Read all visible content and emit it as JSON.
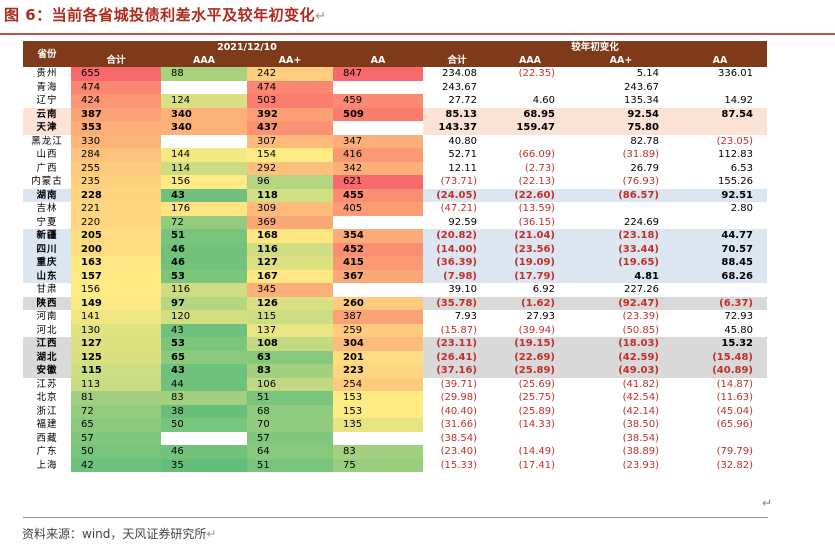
{
  "title": "图 6：当前各省城投债利差水平及较年初变化",
  "paragraph_mark": "↵",
  "header": {
    "province": "省份",
    "date_group": "2021/12/10",
    "change_group": "较年初变化",
    "cols": [
      "合计",
      "AAA",
      "AA+",
      "AA",
      "合计",
      "AAA",
      "AA+",
      "AA"
    ]
  },
  "rows": [
    {
      "p": "贵州",
      "v": [
        "655",
        "88",
        "242",
        "847"
      ],
      "c": [
        "234.08",
        "(22.35)",
        "5.14",
        "336.01"
      ],
      "hl": ""
    },
    {
      "p": "青海",
      "v": [
        "474",
        "",
        "474",
        ""
      ],
      "c": [
        "243.67",
        "",
        "243.67",
        ""
      ],
      "hl": ""
    },
    {
      "p": "辽宁",
      "v": [
        "424",
        "124",
        "503",
        "459"
      ],
      "c": [
        "27.72",
        "4.60",
        "135.34",
        "14.92"
      ],
      "hl": ""
    },
    {
      "p": "云南",
      "v": [
        "387",
        "340",
        "392",
        "509"
      ],
      "c": [
        "85.13",
        "68.95",
        "92.54",
        "87.54"
      ],
      "hl": "orange"
    },
    {
      "p": "天津",
      "v": [
        "353",
        "340",
        "437",
        ""
      ],
      "c": [
        "143.37",
        "159.47",
        "75.80",
        ""
      ],
      "hl": "orange"
    },
    {
      "p": "黑龙江",
      "v": [
        "330",
        "",
        "307",
        "347"
      ],
      "c": [
        "40.80",
        "",
        "82.78",
        "(23.05)"
      ],
      "hl": ""
    },
    {
      "p": "山西",
      "v": [
        "284",
        "144",
        "154",
        "416"
      ],
      "c": [
        "52.71",
        "(66.09)",
        "(31.89)",
        "112.83"
      ],
      "hl": ""
    },
    {
      "p": "广西",
      "v": [
        "255",
        "114",
        "292",
        "342"
      ],
      "c": [
        "12.11",
        "(2.73)",
        "26.79",
        "6.53"
      ],
      "hl": ""
    },
    {
      "p": "内蒙古",
      "v": [
        "235",
        "156",
        "96",
        "621"
      ],
      "c": [
        "(73.71)",
        "(22.13)",
        "(76.93)",
        "155.26"
      ],
      "hl": ""
    },
    {
      "p": "湖南",
      "v": [
        "228",
        "43",
        "118",
        "455"
      ],
      "c": [
        "(24.05)",
        "(22.60)",
        "(86.57)",
        "92.51"
      ],
      "hl": "blue"
    },
    {
      "p": "吉林",
      "v": [
        "221",
        "176",
        "309",
        "405"
      ],
      "c": [
        "(47.21)",
        "(13.59)",
        "",
        "2.80"
      ],
      "hl": ""
    },
    {
      "p": "宁夏",
      "v": [
        "220",
        "72",
        "369",
        ""
      ],
      "c": [
        "92.59",
        "(36.15)",
        "224.69",
        ""
      ],
      "hl": ""
    },
    {
      "p": "新疆",
      "v": [
        "205",
        "51",
        "168",
        "354"
      ],
      "c": [
        "(20.82)",
        "(21.04)",
        "(23.18)",
        "44.77"
      ],
      "hl": "blue"
    },
    {
      "p": "四川",
      "v": [
        "200",
        "46",
        "116",
        "452"
      ],
      "c": [
        "(14.00)",
        "(23.56)",
        "(33.44)",
        "70.57"
      ],
      "hl": "blue"
    },
    {
      "p": "重庆",
      "v": [
        "163",
        "46",
        "127",
        "415"
      ],
      "c": [
        "(36.39)",
        "(19.09)",
        "(19.65)",
        "88.45"
      ],
      "hl": "blue"
    },
    {
      "p": "山东",
      "v": [
        "157",
        "53",
        "167",
        "367"
      ],
      "c": [
        "(7.98)",
        "(17.79)",
        "4.81",
        "68.26"
      ],
      "hl": "blue"
    },
    {
      "p": "甘肃",
      "v": [
        "156",
        "116",
        "345",
        ""
      ],
      "c": [
        "39.10",
        "6.92",
        "227.26",
        ""
      ],
      "hl": ""
    },
    {
      "p": "陕西",
      "v": [
        "149",
        "97",
        "126",
        "260"
      ],
      "c": [
        "(35.78)",
        "(1.62)",
        "(92.47)",
        "(6.37)"
      ],
      "hl": "gray"
    },
    {
      "p": "河南",
      "v": [
        "141",
        "120",
        "115",
        "387"
      ],
      "c": [
        "7.93",
        "27.93",
        "(23.39)",
        "72.93"
      ],
      "hl": ""
    },
    {
      "p": "河北",
      "v": [
        "130",
        "43",
        "137",
        "259"
      ],
      "c": [
        "(15.87)",
        "(39.94)",
        "(50.85)",
        "45.80"
      ],
      "hl": ""
    },
    {
      "p": "江西",
      "v": [
        "127",
        "53",
        "108",
        "304"
      ],
      "c": [
        "(23.11)",
        "(19.15)",
        "(18.03)",
        "15.32"
      ],
      "hl": "gray"
    },
    {
      "p": "湖北",
      "v": [
        "125",
        "65",
        "63",
        "201"
      ],
      "c": [
        "(26.41)",
        "(22.69)",
        "(42.59)",
        "(15.48)"
      ],
      "hl": "gray"
    },
    {
      "p": "安徽",
      "v": [
        "115",
        "43",
        "83",
        "223"
      ],
      "c": [
        "(37.16)",
        "(25.89)",
        "(49.03)",
        "(40.89)"
      ],
      "hl": "gray"
    },
    {
      "p": "江苏",
      "v": [
        "113",
        "44",
        "106",
        "254"
      ],
      "c": [
        "(39.71)",
        "(25.69)",
        "(41.82)",
        "(14.87)"
      ],
      "hl": ""
    },
    {
      "p": "北京",
      "v": [
        "81",
        "83",
        "51",
        "153"
      ],
      "c": [
        "(29.98)",
        "(25.75)",
        "(42.54)",
        "(11.63)"
      ],
      "hl": ""
    },
    {
      "p": "浙江",
      "v": [
        "72",
        "38",
        "68",
        "153"
      ],
      "c": [
        "(40.40)",
        "(25.89)",
        "(42.14)",
        "(45.04)"
      ],
      "hl": ""
    },
    {
      "p": "福建",
      "v": [
        "65",
        "50",
        "70",
        "135"
      ],
      "c": [
        "(31.66)",
        "(14.33)",
        "(38.50)",
        "(65.96)"
      ],
      "hl": ""
    },
    {
      "p": "西藏",
      "v": [
        "57",
        "",
        "57",
        ""
      ],
      "c": [
        "(38.54)",
        "",
        "(38.54)",
        ""
      ],
      "hl": ""
    },
    {
      "p": "广东",
      "v": [
        "50",
        "46",
        "64",
        "83"
      ],
      "c": [
        "(23.40)",
        "(14.49)",
        "(38.89)",
        "(79.79)"
      ],
      "hl": ""
    },
    {
      "p": "上海",
      "v": [
        "42",
        "35",
        "51",
        "75"
      ],
      "c": [
        "(15.33)",
        "(17.41)",
        "(23.93)",
        "(32.82)"
      ],
      "hl": ""
    }
  ],
  "heat_colors": {
    "low": "#63be7b",
    "mid": "#ffeb84",
    "high": "#f8696b"
  },
  "source": "资料来源：wind，天风证券研究所"
}
